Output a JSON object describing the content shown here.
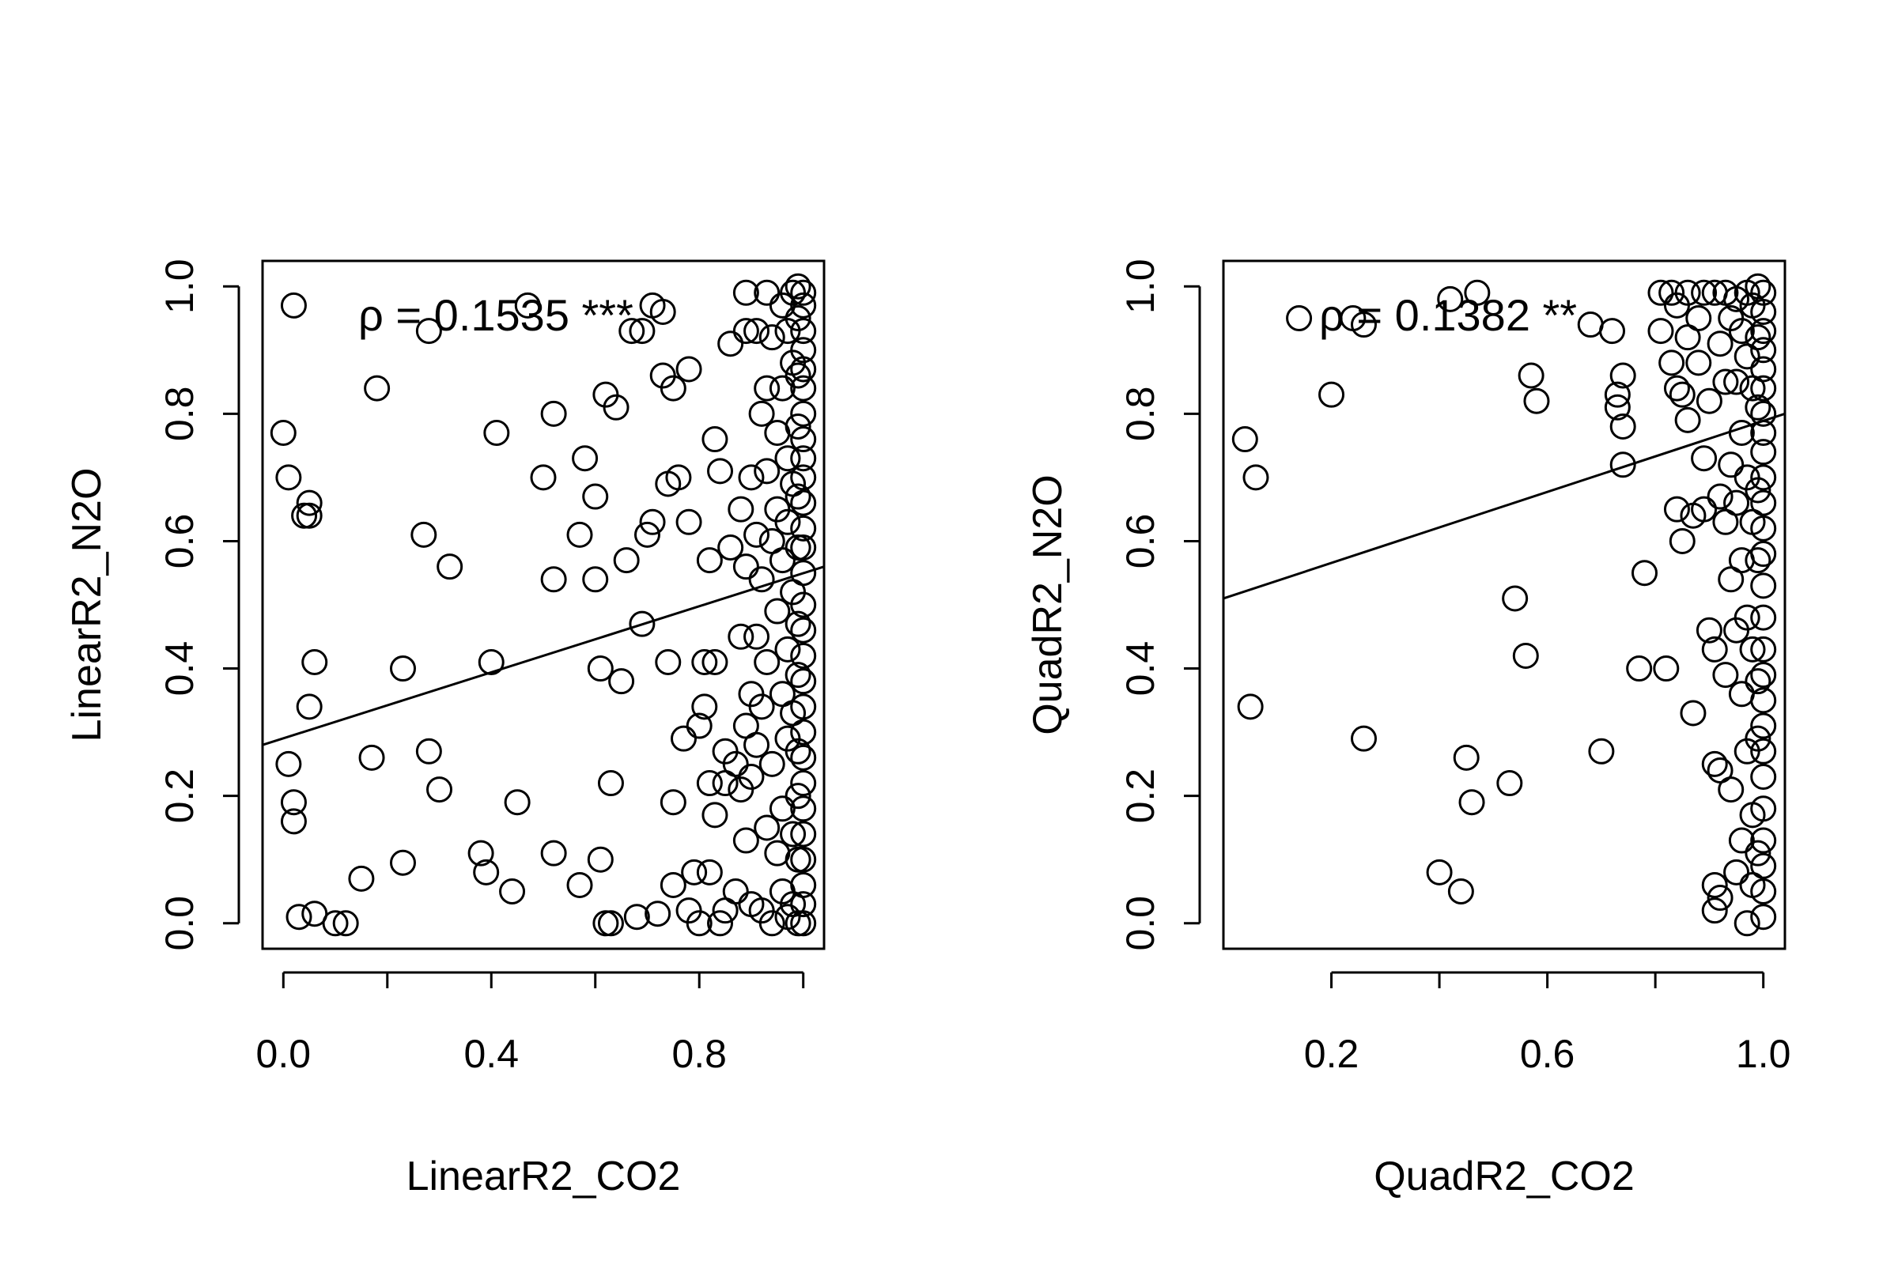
{
  "chart_data": [
    {
      "type": "scatter",
      "xlabel": "LinearR2_CO2",
      "ylabel": "LinearR2_N2O",
      "annotation": "ρ = 0.1535 ***",
      "xlim": [
        -0.04,
        1.04
      ],
      "ylim": [
        -0.04,
        1.04
      ],
      "xticks": [
        0.0,
        0.2,
        0.4,
        0.6,
        0.8,
        1.0
      ],
      "xtick_labels": [
        "0.0",
        "",
        "0.4",
        "",
        "0.8",
        ""
      ],
      "yticks": [
        0.0,
        0.2,
        0.4,
        0.6,
        0.8,
        1.0
      ],
      "ytick_labels": [
        "0.0",
        "0.2",
        "0.4",
        "0.6",
        "0.8",
        "1.0"
      ],
      "fit_line": {
        "x": [
          -0.04,
          1.04
        ],
        "y": [
          0.28,
          0.56
        ]
      },
      "points": [
        [
          0.0,
          0.77
        ],
        [
          0.01,
          0.7
        ],
        [
          0.02,
          0.97
        ],
        [
          0.01,
          0.25
        ],
        [
          0.02,
          0.19
        ],
        [
          0.02,
          0.16
        ],
        [
          0.03,
          0.01
        ],
        [
          0.04,
          0.64
        ],
        [
          0.05,
          0.66
        ],
        [
          0.05,
          0.64
        ],
        [
          0.05,
          0.34
        ],
        [
          0.06,
          0.41
        ],
        [
          0.06,
          0.015
        ],
        [
          0.1,
          0.0
        ],
        [
          0.12,
          0.0
        ],
        [
          0.15,
          0.07
        ],
        [
          0.17,
          0.26
        ],
        [
          0.18,
          0.84
        ],
        [
          0.23,
          0.095
        ],
        [
          0.23,
          0.4
        ],
        [
          0.27,
          0.61
        ],
        [
          0.28,
          0.93
        ],
        [
          0.28,
          0.27
        ],
        [
          0.3,
          0.21
        ],
        [
          0.32,
          0.56
        ],
        [
          0.38,
          0.11
        ],
        [
          0.39,
          0.08
        ],
        [
          0.4,
          0.41
        ],
        [
          0.41,
          0.77
        ],
        [
          0.44,
          0.05
        ],
        [
          0.45,
          0.19
        ],
        [
          0.47,
          0.97
        ],
        [
          0.5,
          0.7
        ],
        [
          0.52,
          0.8
        ],
        [
          0.52,
          0.54
        ],
        [
          0.52,
          0.11
        ],
        [
          0.57,
          0.61
        ],
        [
          0.57,
          0.06
        ],
        [
          0.58,
          0.73
        ],
        [
          0.6,
          0.67
        ],
        [
          0.6,
          0.54
        ],
        [
          0.61,
          0.4
        ],
        [
          0.61,
          0.1
        ],
        [
          0.62,
          0.0
        ],
        [
          0.62,
          0.83
        ],
        [
          0.63,
          0.22
        ],
        [
          0.63,
          0.0
        ],
        [
          0.64,
          0.81
        ],
        [
          0.65,
          0.38
        ],
        [
          0.66,
          0.57
        ],
        [
          0.67,
          0.93
        ],
        [
          0.68,
          0.01
        ],
        [
          0.69,
          0.93
        ],
        [
          0.69,
          0.47
        ],
        [
          0.7,
          0.61
        ],
        [
          0.71,
          0.97
        ],
        [
          0.71,
          0.63
        ],
        [
          0.72,
          0.015
        ],
        [
          0.73,
          0.96
        ],
        [
          0.73,
          0.86
        ],
        [
          0.74,
          0.69
        ],
        [
          0.74,
          0.41
        ],
        [
          0.75,
          0.84
        ],
        [
          0.75,
          0.19
        ],
        [
          0.75,
          0.06
        ],
        [
          0.76,
          0.7
        ],
        [
          0.77,
          0.29
        ],
        [
          0.78,
          0.87
        ],
        [
          0.78,
          0.63
        ],
        [
          0.78,
          0.02
        ],
        [
          0.79,
          0.08
        ],
        [
          0.8,
          0.31
        ],
        [
          0.8,
          0.0
        ],
        [
          0.81,
          0.34
        ],
        [
          0.81,
          0.41
        ],
        [
          0.82,
          0.57
        ],
        [
          0.82,
          0.22
        ],
        [
          0.82,
          0.08
        ],
        [
          0.83,
          0.76
        ],
        [
          0.83,
          0.41
        ],
        [
          0.83,
          0.17
        ],
        [
          0.84,
          0.71
        ],
        [
          0.84,
          0.0
        ],
        [
          0.85,
          0.27
        ],
        [
          0.85,
          0.22
        ],
        [
          0.85,
          0.02
        ],
        [
          0.86,
          0.91
        ],
        [
          0.86,
          0.59
        ],
        [
          0.87,
          0.25
        ],
        [
          0.87,
          0.05
        ],
        [
          0.88,
          0.65
        ],
        [
          0.88,
          0.45
        ],
        [
          0.88,
          0.21
        ],
        [
          0.89,
          0.99
        ],
        [
          0.89,
          0.93
        ],
        [
          0.89,
          0.56
        ],
        [
          0.89,
          0.31
        ],
        [
          0.89,
          0.13
        ],
        [
          0.9,
          0.7
        ],
        [
          0.9,
          0.36
        ],
        [
          0.9,
          0.23
        ],
        [
          0.9,
          0.03
        ],
        [
          0.91,
          0.93
        ],
        [
          0.91,
          0.61
        ],
        [
          0.91,
          0.45
        ],
        [
          0.91,
          0.28
        ],
        [
          0.92,
          0.8
        ],
        [
          0.92,
          0.54
        ],
        [
          0.92,
          0.34
        ],
        [
          0.92,
          0.02
        ],
        [
          0.93,
          0.99
        ],
        [
          0.93,
          0.84
        ],
        [
          0.93,
          0.71
        ],
        [
          0.93,
          0.41
        ],
        [
          0.93,
          0.15
        ],
        [
          0.94,
          0.92
        ],
        [
          0.94,
          0.6
        ],
        [
          0.94,
          0.25
        ],
        [
          0.94,
          0.0
        ],
        [
          0.95,
          0.77
        ],
        [
          0.95,
          0.65
        ],
        [
          0.95,
          0.49
        ],
        [
          0.95,
          0.11
        ],
        [
          0.96,
          0.97
        ],
        [
          0.96,
          0.84
        ],
        [
          0.96,
          0.57
        ],
        [
          0.96,
          0.36
        ],
        [
          0.96,
          0.18
        ],
        [
          0.96,
          0.05
        ],
        [
          0.97,
          0.93
        ],
        [
          0.97,
          0.73
        ],
        [
          0.97,
          0.63
        ],
        [
          0.97,
          0.43
        ],
        [
          0.97,
          0.29
        ],
        [
          0.97,
          0.01
        ],
        [
          0.98,
          0.99
        ],
        [
          0.98,
          0.88
        ],
        [
          0.98,
          0.69
        ],
        [
          0.98,
          0.52
        ],
        [
          0.98,
          0.33
        ],
        [
          0.98,
          0.14
        ],
        [
          0.98,
          0.03
        ],
        [
          0.99,
          1.0
        ],
        [
          0.99,
          0.95
        ],
        [
          0.99,
          0.86
        ],
        [
          0.99,
          0.78
        ],
        [
          0.99,
          0.67
        ],
        [
          0.99,
          0.59
        ],
        [
          0.99,
          0.47
        ],
        [
          0.99,
          0.39
        ],
        [
          0.99,
          0.27
        ],
        [
          0.99,
          0.2
        ],
        [
          0.99,
          0.1
        ],
        [
          0.99,
          0.0
        ],
        [
          1.0,
          0.99
        ],
        [
          1.0,
          0.97
        ],
        [
          1.0,
          0.93
        ],
        [
          1.0,
          0.9
        ],
        [
          1.0,
          0.87
        ],
        [
          1.0,
          0.84
        ],
        [
          1.0,
          0.8
        ],
        [
          1.0,
          0.76
        ],
        [
          1.0,
          0.73
        ],
        [
          1.0,
          0.7
        ],
        [
          1.0,
          0.66
        ],
        [
          1.0,
          0.62
        ],
        [
          1.0,
          0.59
        ],
        [
          1.0,
          0.55
        ],
        [
          1.0,
          0.5
        ],
        [
          1.0,
          0.46
        ],
        [
          1.0,
          0.42
        ],
        [
          1.0,
          0.38
        ],
        [
          1.0,
          0.34
        ],
        [
          1.0,
          0.3
        ],
        [
          1.0,
          0.26
        ],
        [
          1.0,
          0.22
        ],
        [
          1.0,
          0.18
        ],
        [
          1.0,
          0.14
        ],
        [
          1.0,
          0.1
        ],
        [
          1.0,
          0.06
        ],
        [
          1.0,
          0.03
        ],
        [
          1.0,
          0.0
        ]
      ]
    },
    {
      "type": "scatter",
      "xlabel": "QuadR2_CO2",
      "ylabel": "QuadR2_N2O",
      "annotation": "ρ = 0.1382 **",
      "xlim": [
        0.0,
        1.04
      ],
      "ylim": [
        -0.04,
        1.04
      ],
      "xticks": [
        0.2,
        0.4,
        0.6,
        0.8,
        1.0
      ],
      "xtick_labels": [
        "0.2",
        "",
        "0.6",
        "",
        "1.0"
      ],
      "yticks": [
        0.0,
        0.2,
        0.4,
        0.6,
        0.8,
        1.0
      ],
      "ytick_labels": [
        "0.0",
        "0.2",
        "0.4",
        "0.6",
        "0.8",
        "1.0"
      ],
      "fit_line": {
        "x": [
          0.0,
          1.04
        ],
        "y": [
          0.51,
          0.8
        ]
      },
      "points": [
        [
          0.04,
          0.76
        ],
        [
          0.05,
          0.34
        ],
        [
          0.06,
          0.7
        ],
        [
          0.14,
          0.95
        ],
        [
          0.2,
          0.83
        ],
        [
          0.24,
          0.95
        ],
        [
          0.26,
          0.94
        ],
        [
          0.26,
          0.29
        ],
        [
          0.4,
          0.08
        ],
        [
          0.42,
          0.98
        ],
        [
          0.44,
          0.05
        ],
        [
          0.45,
          0.26
        ],
        [
          0.46,
          0.19
        ],
        [
          0.47,
          0.99
        ],
        [
          0.53,
          0.22
        ],
        [
          0.54,
          0.51
        ],
        [
          0.56,
          0.42
        ],
        [
          0.57,
          0.86
        ],
        [
          0.58,
          0.82
        ],
        [
          0.68,
          0.94
        ],
        [
          0.7,
          0.27
        ],
        [
          0.72,
          0.93
        ],
        [
          0.73,
          0.83
        ],
        [
          0.73,
          0.81
        ],
        [
          0.74,
          0.78
        ],
        [
          0.74,
          0.72
        ],
        [
          0.74,
          0.86
        ],
        [
          0.77,
          0.4
        ],
        [
          0.78,
          0.55
        ],
        [
          0.81,
          0.99
        ],
        [
          0.81,
          0.93
        ],
        [
          0.82,
          0.4
        ],
        [
          0.83,
          0.88
        ],
        [
          0.83,
          0.99
        ],
        [
          0.84,
          0.97
        ],
        [
          0.84,
          0.84
        ],
        [
          0.84,
          0.65
        ],
        [
          0.85,
          0.6
        ],
        [
          0.85,
          0.83
        ],
        [
          0.86,
          0.99
        ],
        [
          0.86,
          0.92
        ],
        [
          0.86,
          0.79
        ],
        [
          0.87,
          0.33
        ],
        [
          0.87,
          0.64
        ],
        [
          0.88,
          0.95
        ],
        [
          0.88,
          0.88
        ],
        [
          0.89,
          0.99
        ],
        [
          0.89,
          0.73
        ],
        [
          0.89,
          0.65
        ],
        [
          0.9,
          0.82
        ],
        [
          0.9,
          0.46
        ],
        [
          0.91,
          0.99
        ],
        [
          0.91,
          0.43
        ],
        [
          0.91,
          0.25
        ],
        [
          0.91,
          0.06
        ],
        [
          0.91,
          0.02
        ],
        [
          0.92,
          0.91
        ],
        [
          0.92,
          0.67
        ],
        [
          0.92,
          0.24
        ],
        [
          0.92,
          0.04
        ],
        [
          0.93,
          0.99
        ],
        [
          0.93,
          0.85
        ],
        [
          0.93,
          0.63
        ],
        [
          0.93,
          0.39
        ],
        [
          0.94,
          0.95
        ],
        [
          0.94,
          0.72
        ],
        [
          0.94,
          0.54
        ],
        [
          0.94,
          0.21
        ],
        [
          0.95,
          0.98
        ],
        [
          0.95,
          0.85
        ],
        [
          0.95,
          0.66
        ],
        [
          0.95,
          0.46
        ],
        [
          0.95,
          0.08
        ],
        [
          0.96,
          0.93
        ],
        [
          0.96,
          0.77
        ],
        [
          0.96,
          0.57
        ],
        [
          0.96,
          0.36
        ],
        [
          0.96,
          0.13
        ],
        [
          0.97,
          0.99
        ],
        [
          0.97,
          0.89
        ],
        [
          0.97,
          0.7
        ],
        [
          0.97,
          0.48
        ],
        [
          0.97,
          0.27
        ],
        [
          0.97,
          0.0
        ],
        [
          0.98,
          0.97
        ],
        [
          0.98,
          0.84
        ],
        [
          0.98,
          0.63
        ],
        [
          0.98,
          0.43
        ],
        [
          0.98,
          0.17
        ],
        [
          0.98,
          0.06
        ],
        [
          0.99,
          1.0
        ],
        [
          0.99,
          0.92
        ],
        [
          0.99,
          0.81
        ],
        [
          0.99,
          0.68
        ],
        [
          0.99,
          0.57
        ],
        [
          0.99,
          0.38
        ],
        [
          0.99,
          0.29
        ],
        [
          0.99,
          0.11
        ],
        [
          1.0,
          0.99
        ],
        [
          1.0,
          0.96
        ],
        [
          1.0,
          0.93
        ],
        [
          1.0,
          0.9
        ],
        [
          1.0,
          0.87
        ],
        [
          1.0,
          0.84
        ],
        [
          1.0,
          0.8
        ],
        [
          1.0,
          0.77
        ],
        [
          1.0,
          0.74
        ],
        [
          1.0,
          0.7
        ],
        [
          1.0,
          0.66
        ],
        [
          1.0,
          0.62
        ],
        [
          1.0,
          0.58
        ],
        [
          1.0,
          0.53
        ],
        [
          1.0,
          0.48
        ],
        [
          1.0,
          0.43
        ],
        [
          1.0,
          0.39
        ],
        [
          1.0,
          0.35
        ],
        [
          1.0,
          0.31
        ],
        [
          1.0,
          0.27
        ],
        [
          1.0,
          0.23
        ],
        [
          1.0,
          0.18
        ],
        [
          1.0,
          0.13
        ],
        [
          1.0,
          0.09
        ],
        [
          1.0,
          0.05
        ],
        [
          1.0,
          0.01
        ]
      ]
    }
  ]
}
